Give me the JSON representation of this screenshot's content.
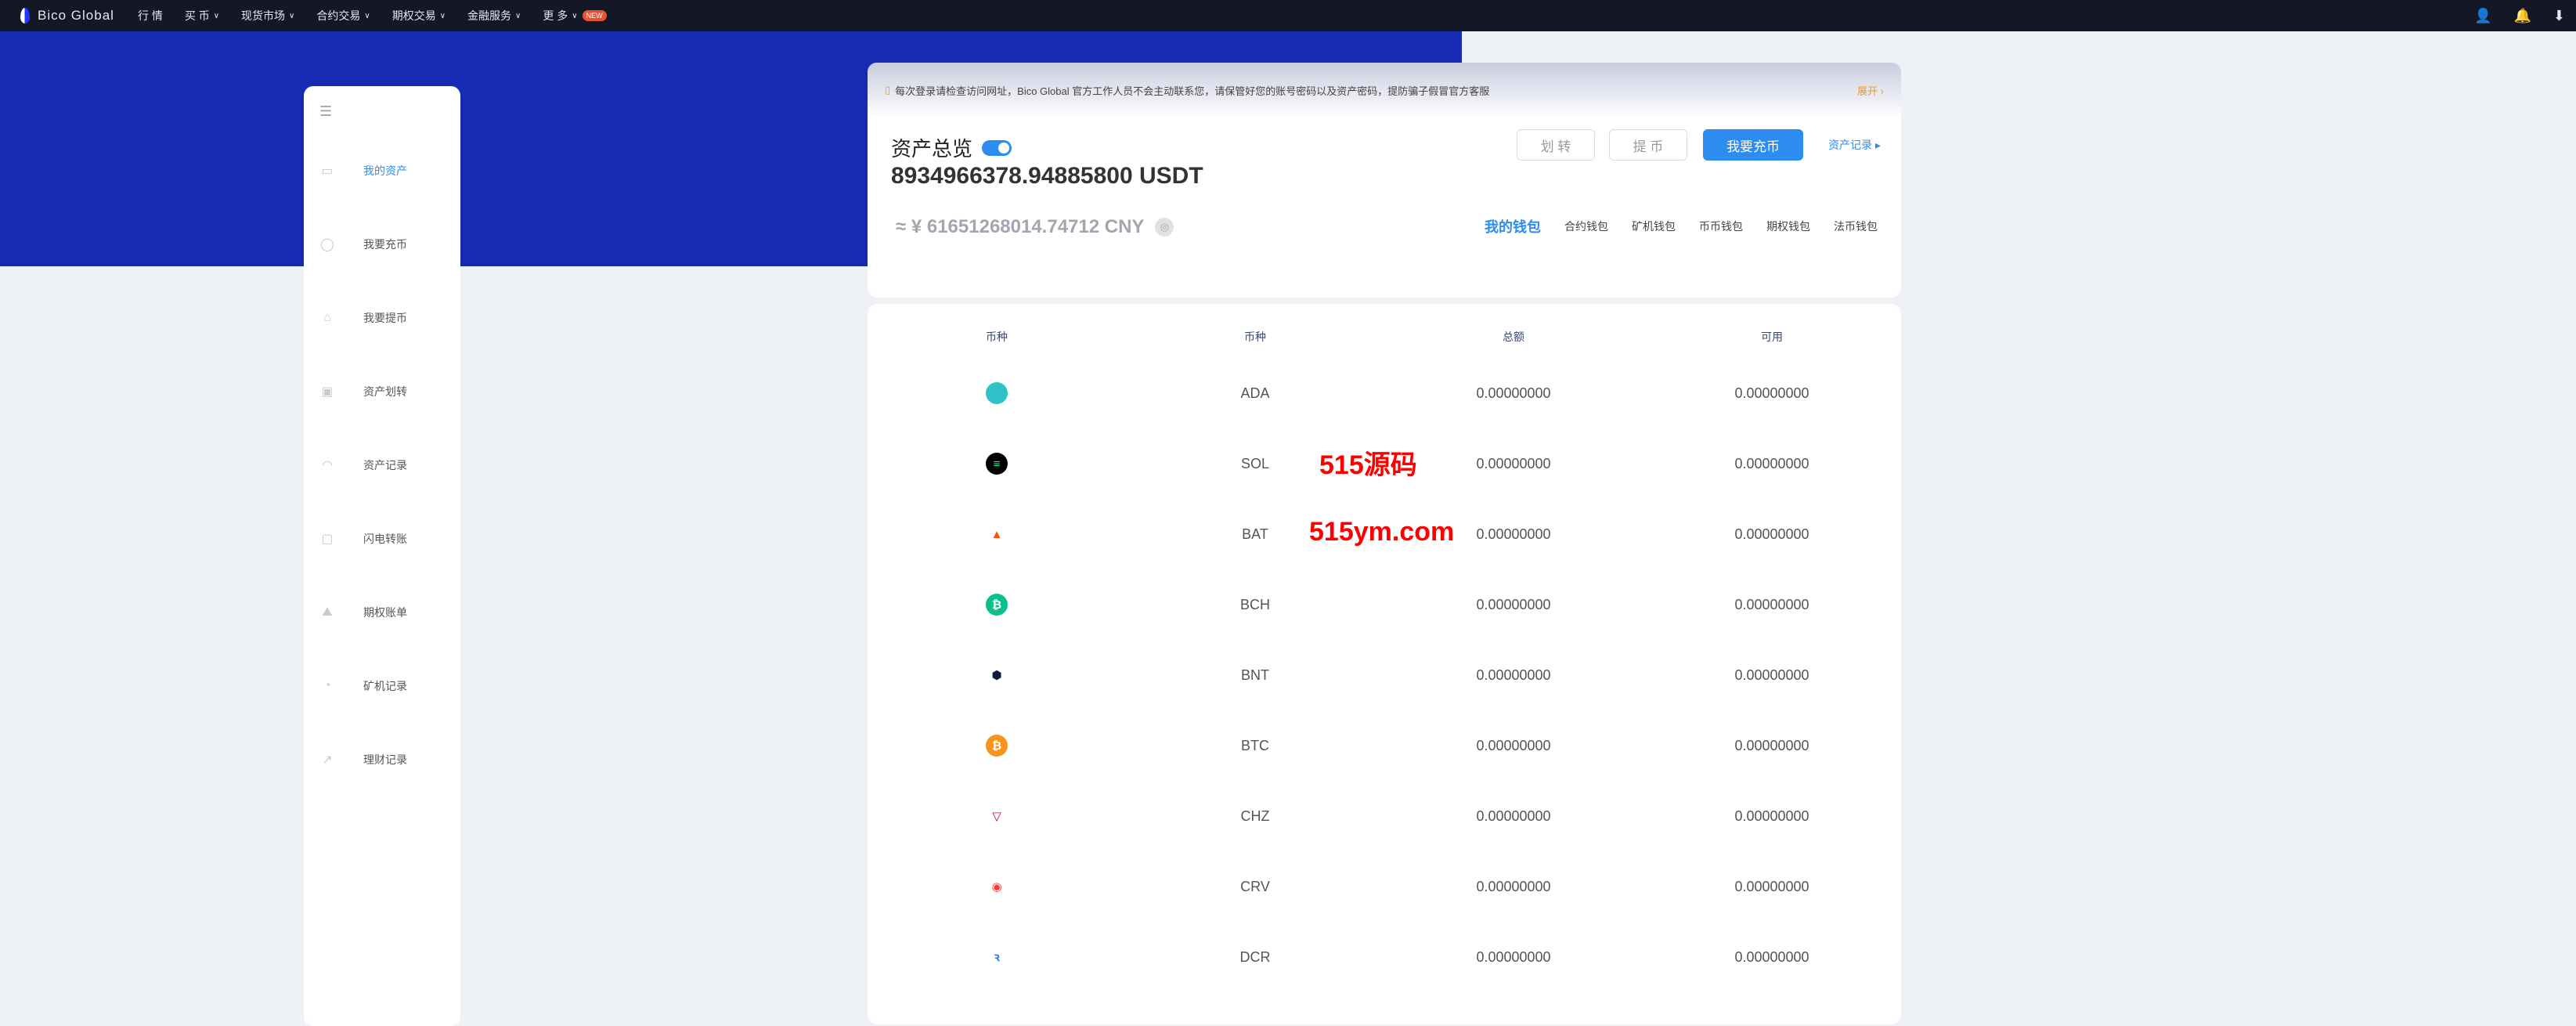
{
  "nav": {
    "brand": "Bico Global",
    "items": [
      {
        "label": "行 情",
        "dropdown": false
      },
      {
        "label": "买 币",
        "dropdown": true
      },
      {
        "label": "现货市场",
        "dropdown": true
      },
      {
        "label": "合约交易",
        "dropdown": true
      },
      {
        "label": "期权交易",
        "dropdown": true
      },
      {
        "label": "金融服务",
        "dropdown": true
      },
      {
        "label": "更 多",
        "dropdown": true,
        "badge": "NEW"
      }
    ],
    "icons": [
      "user-icon",
      "bell-icon",
      "download-icon"
    ]
  },
  "colors": {
    "banner": "#152bb4",
    "accent": "#2d8cf0",
    "nav": "#131726",
    "warning": "#f29b16"
  },
  "sidebar": {
    "items": [
      {
        "label": "我的资产",
        "icon": "wallet-icon",
        "active": true
      },
      {
        "label": "我要充币",
        "icon": "deposit-icon"
      },
      {
        "label": "我要提币",
        "icon": "withdraw-icon"
      },
      {
        "label": "资产划转",
        "icon": "transfer-icon"
      },
      {
        "label": "资产记录",
        "icon": "record-icon"
      },
      {
        "label": "闪电转账",
        "icon": "flash-icon"
      },
      {
        "label": "期权账单",
        "icon": "bill-icon"
      },
      {
        "label": "矿机记录",
        "icon": "miner-icon"
      },
      {
        "label": "理财记录",
        "icon": "finance-icon"
      }
    ]
  },
  "notice": {
    "text": "每次登录请检查访问网址，Bico Global 官方工作人员不会主动联系您，请保管好您的账号密码以及资产密码，提防骗子假冒官方客服",
    "expand": "展开"
  },
  "overview": {
    "title": "资产总览",
    "amount": "8934966378.94885800 USDT",
    "cny": "≈ ¥ 61651268014.74712 CNY",
    "buttons": {
      "transfer": "划 转",
      "withdraw": "提 币",
      "deposit": "我要充币"
    },
    "records": "资产记录",
    "tabs": [
      {
        "label": "我的钱包",
        "active": true
      },
      {
        "label": "合约钱包"
      },
      {
        "label": "矿机钱包"
      },
      {
        "label": "币币钱包"
      },
      {
        "label": "期权钱包"
      },
      {
        "label": "法币钱包"
      }
    ]
  },
  "table": {
    "headers": [
      "币种",
      "币种",
      "总额",
      "可用"
    ],
    "rows": [
      {
        "symbol": "ADA",
        "total": "0.00000000",
        "available": "0.00000000",
        "color": "#2fc3c9",
        "glyph": "✺"
      },
      {
        "symbol": "SOL",
        "total": "0.00000000",
        "available": "0.00000000",
        "color": "#000000",
        "glyph": "≡"
      },
      {
        "symbol": "BAT",
        "total": "0.00000000",
        "available": "0.00000000",
        "color": "#ffffff",
        "glyph": "▲"
      },
      {
        "symbol": "BCH",
        "total": "0.00000000",
        "available": "0.00000000",
        "color": "#0ac18e",
        "glyph": "₿"
      },
      {
        "symbol": "BNT",
        "total": "0.00000000",
        "available": "0.00000000",
        "color": "#ffffff",
        "glyph": "⬢"
      },
      {
        "symbol": "BTC",
        "total": "0.00000000",
        "available": "0.00000000",
        "color": "#f7931a",
        "glyph": "₿"
      },
      {
        "symbol": "CHZ",
        "total": "0.00000000",
        "available": "0.00000000",
        "color": "#ffffff",
        "glyph": "▽"
      },
      {
        "symbol": "CRV",
        "total": "0.00000000",
        "available": "0.00000000",
        "color": "#ffffff",
        "glyph": "◉"
      },
      {
        "symbol": "DCR",
        "total": "0.00000000",
        "available": "0.00000000",
        "color": "#ffffff",
        "glyph": "ꝛ"
      }
    ]
  },
  "watermark": {
    "line1": "515源码",
    "line2": "515ym.com"
  }
}
